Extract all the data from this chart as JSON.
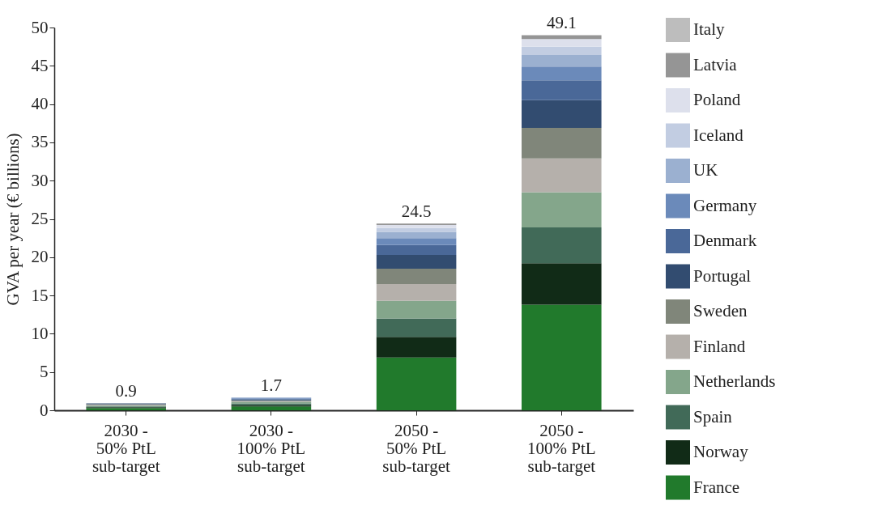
{
  "chart_data": {
    "type": "bar",
    "stacked": true,
    "ylabel": "GVA per year (€ billions)",
    "categories": [
      "2030 - 50% PtL sub-target",
      "2030 - 100% PtL sub-target",
      "2050 - 50% PtL sub-target",
      "2050 - 100% PtL sub-target"
    ],
    "series": [
      {
        "name": "France",
        "color": "#217a2c",
        "values": [
          0.3,
          0.5,
          6.9,
          13.8
        ]
      },
      {
        "name": "Norway",
        "color": "#112b17",
        "values": [
          0.1,
          0.2,
          2.7,
          5.4
        ]
      },
      {
        "name": "Spain",
        "color": "#416a58",
        "values": [
          0.1,
          0.2,
          2.4,
          4.7
        ]
      },
      {
        "name": "Netherlands",
        "color": "#84a68b",
        "values": [
          0.1,
          0.2,
          2.3,
          4.6
        ]
      },
      {
        "name": "Finland",
        "color": "#b5b0ab",
        "values": [
          0.1,
          0.1,
          2.2,
          4.4
        ]
      },
      {
        "name": "Sweden",
        "color": "#80867a",
        "values": [
          0.1,
          0.1,
          2.0,
          4.0
        ]
      },
      {
        "name": "Portugal",
        "color": "#324c70",
        "values": [
          0.1,
          0.1,
          1.8,
          3.6
        ]
      },
      {
        "name": "Denmark",
        "color": "#4a6898",
        "values": [
          null,
          0.1,
          1.3,
          2.6
        ]
      },
      {
        "name": "Germany",
        "color": "#6b8aba",
        "values": [
          null,
          0.1,
          0.9,
          1.8
        ]
      },
      {
        "name": "UK",
        "color": "#9bb0d0",
        "values": [
          null,
          0.1,
          0.8,
          1.5
        ]
      },
      {
        "name": "Iceland",
        "color": "#c2cde2",
        "values": [
          null,
          null,
          0.5,
          1.1
        ]
      },
      {
        "name": "Poland",
        "color": "#dde0ec",
        "values": [
          null,
          null,
          0.4,
          1.0
        ]
      },
      {
        "name": "Latvia",
        "color": "#959595",
        "values": [
          null,
          null,
          0.2,
          0.5
        ]
      },
      {
        "name": "Italy",
        "color": "#bdbdbd",
        "values": [
          null,
          null,
          null,
          null
        ]
      }
    ],
    "totals": [
      "0.9",
      "1.7",
      "24.5",
      "49.1"
    ],
    "ylim": [
      0,
      50
    ],
    "yticks": [
      0,
      5,
      10,
      15,
      20,
      25,
      30,
      35,
      40,
      45,
      50
    ],
    "grid": false,
    "legend": "right"
  }
}
